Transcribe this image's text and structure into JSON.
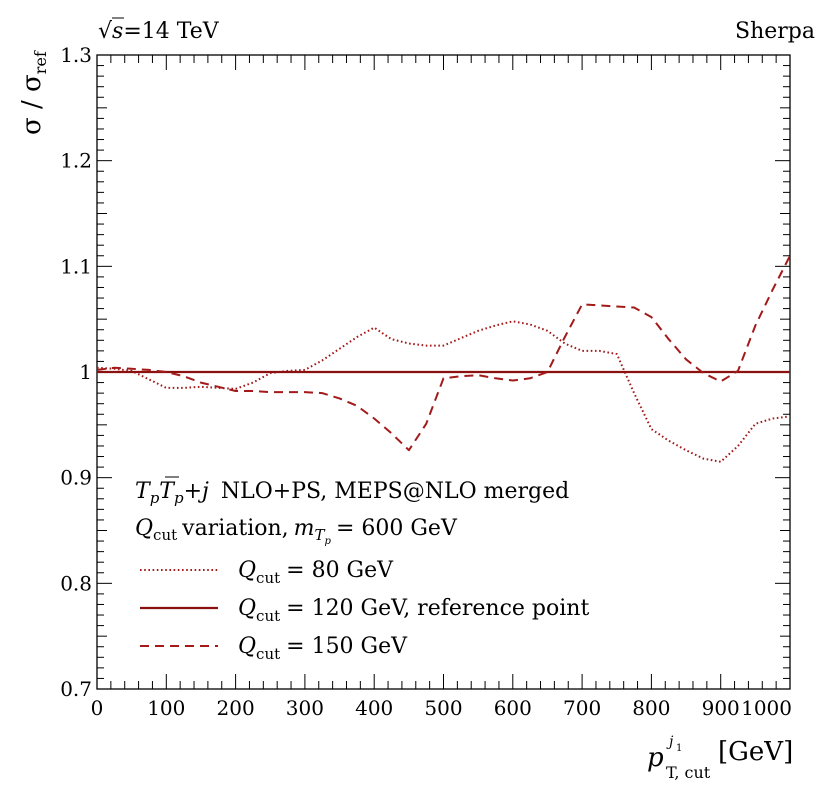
{
  "chart_data": {
    "type": "line",
    "header_left_sqrt": "√",
    "header_left_s": "s",
    "header_left_rest": "=14 TeV",
    "header_right": "Sherpa",
    "ylabel": {
      "sigma": "σ",
      "slash": " / ",
      "sigma_ref": "σ",
      "ref_sub": "ref"
    },
    "xlabel": {
      "p": "p",
      "sub": "T, cut",
      "sup_j": "j",
      "sup_1": "1",
      "unit": "[GeV]"
    },
    "xlim": [
      0,
      1000
    ],
    "ylim": [
      0.7,
      1.3
    ],
    "x_ticks": [
      0,
      100,
      200,
      300,
      400,
      500,
      600,
      700,
      800,
      900,
      1000
    ],
    "y_ticks": [
      "0.7",
      "0.8",
      "0.9",
      "1",
      "1.1",
      "1.2",
      "1.3"
    ],
    "y_tick_values": [
      0.7,
      0.8,
      0.9,
      1.0,
      1.1,
      1.2,
      1.3
    ],
    "process_label": {
      "T": "T",
      "p": "p",
      "Tbar": "T",
      "pbar": "p",
      "plus": "+",
      "j": "j",
      "rest": "NLO+PS, MEPS@NLO merged"
    },
    "variation_label": {
      "Q": "Q",
      "cut": "cut",
      "text": "variation,",
      "m": "m",
      "T": "T",
      "p": "p",
      "equals": "= 600 GeV"
    },
    "series": [
      {
        "name": "Qcut = 80 GeV",
        "legend_q": "Q",
        "legend_sub": "cut",
        "legend_rest": "= 80 GeV",
        "style": "dotted",
        "color": "#a31a1a",
        "x": [
          0,
          25,
          50,
          75,
          100,
          125,
          150,
          175,
          200,
          225,
          250,
          275,
          300,
          325,
          350,
          375,
          400,
          425,
          450,
          475,
          500,
          525,
          550,
          575,
          600,
          625,
          650,
          675,
          700,
          725,
          750,
          775,
          800,
          825,
          850,
          875,
          900,
          925,
          950,
          975,
          1000
        ],
        "y": [
          1.004,
          1.003,
          1.001,
          0.993,
          0.985,
          0.985,
          0.986,
          0.985,
          0.984,
          0.99,
          0.999,
          1.001,
          1.002,
          1.011,
          1.022,
          1.033,
          1.042,
          1.031,
          1.027,
          1.025,
          1.025,
          1.032,
          1.039,
          1.044,
          1.048,
          1.045,
          1.039,
          1.027,
          1.02,
          1.02,
          1.017,
          0.98,
          0.946,
          0.935,
          0.926,
          0.918,
          0.915,
          0.93,
          0.951,
          0.956,
          0.958
        ]
      },
      {
        "name": "Qcut = 120 GeV, reference point",
        "legend_q": "Q",
        "legend_sub": "cut",
        "legend_rest": "= 120 GeV, reference point",
        "style": "solid",
        "color": "#8b1010",
        "x": [
          0,
          1000
        ],
        "y": [
          1.0,
          1.0
        ]
      },
      {
        "name": "Qcut = 150 GeV",
        "legend_q": "Q",
        "legend_sub": "cut",
        "legend_rest": "= 150 GeV",
        "style": "dashed",
        "color": "#a31a1a",
        "x": [
          0,
          25,
          50,
          75,
          100,
          125,
          150,
          175,
          200,
          225,
          250,
          275,
          300,
          325,
          350,
          375,
          400,
          425,
          450,
          475,
          500,
          525,
          550,
          575,
          600,
          625,
          650,
          675,
          700,
          725,
          750,
          775,
          800,
          825,
          850,
          875,
          900,
          925,
          950,
          975,
          1000
        ],
        "y": [
          1.002,
          1.004,
          1.003,
          1.002,
          1.0,
          0.996,
          0.99,
          0.986,
          0.982,
          0.982,
          0.981,
          0.981,
          0.981,
          0.98,
          0.975,
          0.968,
          0.956,
          0.942,
          0.926,
          0.951,
          0.994,
          0.996,
          0.997,
          0.994,
          0.992,
          0.994,
          1.0,
          1.033,
          1.064,
          1.063,
          1.062,
          1.061,
          1.052,
          1.031,
          1.012,
          0.999,
          0.991,
          1.001,
          1.044,
          1.078,
          1.11
        ]
      }
    ]
  }
}
